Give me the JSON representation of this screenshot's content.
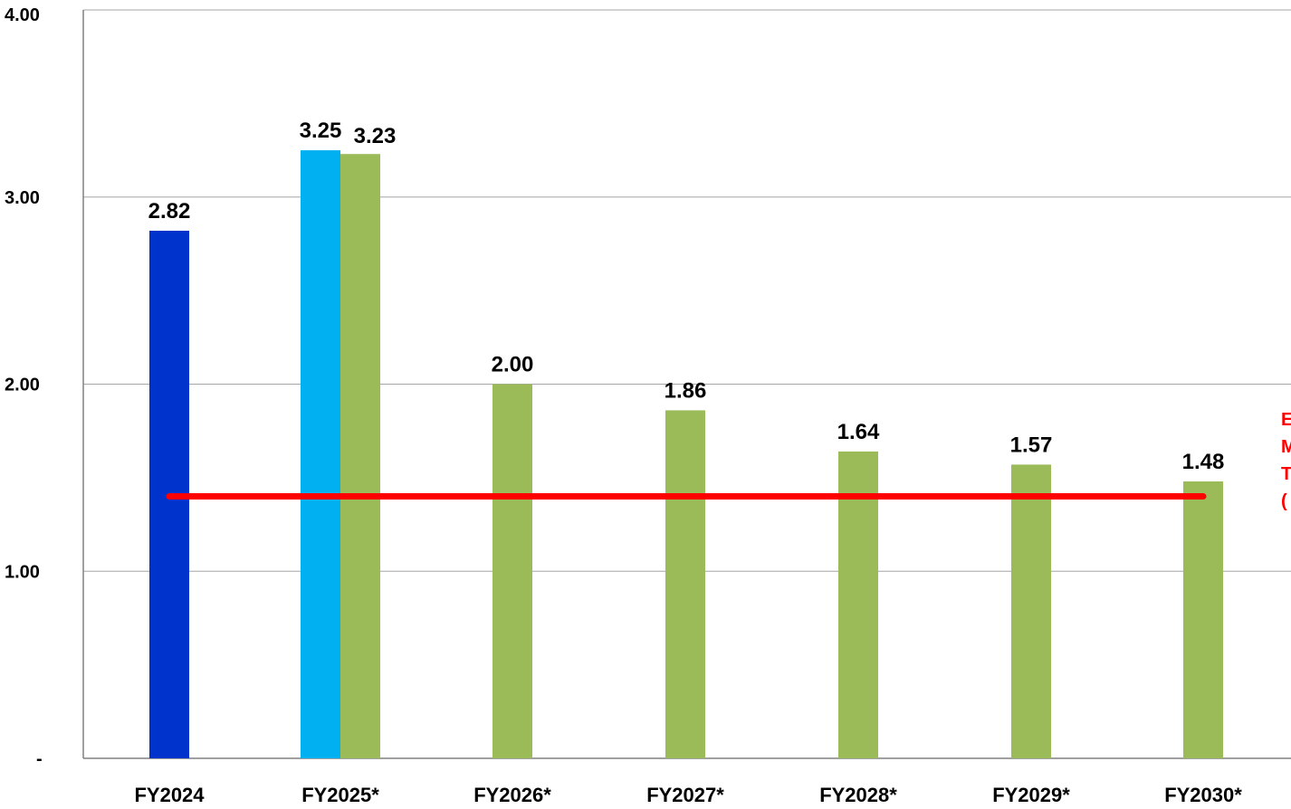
{
  "chart_data": {
    "type": "bar",
    "categories": [
      "FY2024",
      "FY2025*",
      "FY2026*",
      "FY2027*",
      "FY2028*",
      "FY2029*",
      "FY2030*"
    ],
    "series": [
      {
        "values": [
          2.82,
          null,
          null,
          null,
          null,
          null,
          null
        ],
        "color": "#0033cc"
      },
      {
        "values": [
          null,
          3.25,
          null,
          null,
          null,
          null,
          null
        ],
        "color": "#00b0f0"
      },
      {
        "values": [
          null,
          3.23,
          2.0,
          1.86,
          1.64,
          1.57,
          1.48
        ],
        "color": "#9bbb59"
      }
    ],
    "data_labels": [
      "2.82",
      "3.25",
      "3.23",
      "2.00",
      "1.86",
      "1.64",
      "1.57",
      "1.48"
    ],
    "ylim": [
      0,
      4
    ],
    "yticks": [
      0,
      1,
      2,
      3,
      4
    ],
    "ytick_labels": [
      "-",
      "1.00",
      "2.00",
      "3.00",
      "4.00"
    ],
    "grid": true,
    "reference_line": {
      "value": 1.4,
      "color": "#ff0000",
      "label_fragments": [
        "E",
        "M",
        "T",
        "("
      ]
    },
    "title": "",
    "xlabel": "",
    "ylabel": ""
  }
}
